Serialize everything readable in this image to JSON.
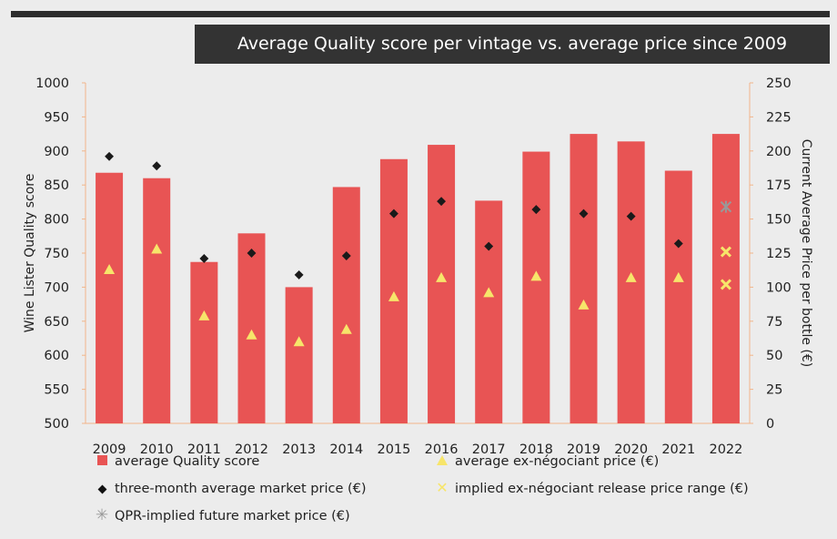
{
  "title": "Average Quality score per vintage vs. average price since 2009",
  "colors": {
    "bar": "#e85454",
    "triangle": "#f7e56a",
    "diamond": "#1a1a1a",
    "x_mark": "#f7e56a",
    "star": "#999999",
    "axis": "#f2b58a"
  },
  "chart_data": {
    "type": "bar",
    "title": "Average Quality score per vintage vs. average price since 2009",
    "xlabel": "",
    "ylabel": "Wine Lister Quality score",
    "y2label": "Current Average Price per bottle (€)",
    "ylim": [
      500,
      1000
    ],
    "y2lim": [
      0,
      250
    ],
    "yticks": [
      500,
      550,
      600,
      650,
      700,
      750,
      800,
      850,
      900,
      950,
      1000
    ],
    "y2ticks": [
      0,
      25,
      50,
      75,
      100,
      125,
      150,
      175,
      200,
      225,
      250
    ],
    "categories": [
      "2009",
      "2010",
      "2011",
      "2012",
      "2013",
      "2014",
      "2015",
      "2016",
      "2017",
      "2018",
      "2019",
      "2020",
      "2021",
      "2022"
    ],
    "series": [
      {
        "name": "average Quality score",
        "type": "bar",
        "axis": "left",
        "values": [
          868,
          860,
          737,
          779,
          700,
          847,
          888,
          909,
          827,
          899,
          925,
          914,
          871,
          925
        ]
      },
      {
        "name": "three-month average market price (€)",
        "type": "diamond",
        "axis": "right",
        "values": [
          196,
          189,
          121,
          125,
          109,
          123,
          154,
          163,
          130,
          157,
          154,
          152,
          132,
          null
        ]
      },
      {
        "name": "average ex-négociant price (€)",
        "type": "triangle",
        "axis": "right",
        "values": [
          113,
          128,
          79,
          65,
          60,
          69,
          93,
          107,
          96,
          108,
          87,
          107,
          107,
          null
        ]
      },
      {
        "name": "implied ex-négociant release price range (€)",
        "type": "x",
        "axis": "right",
        "values": [
          null,
          null,
          null,
          null,
          null,
          null,
          null,
          null,
          null,
          null,
          null,
          null,
          null,
          [
            126,
            102
          ]
        ]
      },
      {
        "name": "QPR-implied future market price (€)",
        "type": "star",
        "axis": "right",
        "values": [
          null,
          null,
          null,
          null,
          null,
          null,
          null,
          null,
          null,
          null,
          null,
          null,
          null,
          159
        ]
      }
    ],
    "legend_placement": "bottom",
    "grid": false
  },
  "legend": {
    "bar": "average Quality score",
    "triangle": "average ex-négociant price (€)",
    "diamond": "three-month average market price (€)",
    "x_mark": "implied ex-négociant release price range (€)",
    "star": "QPR-implied future market price (€)"
  }
}
